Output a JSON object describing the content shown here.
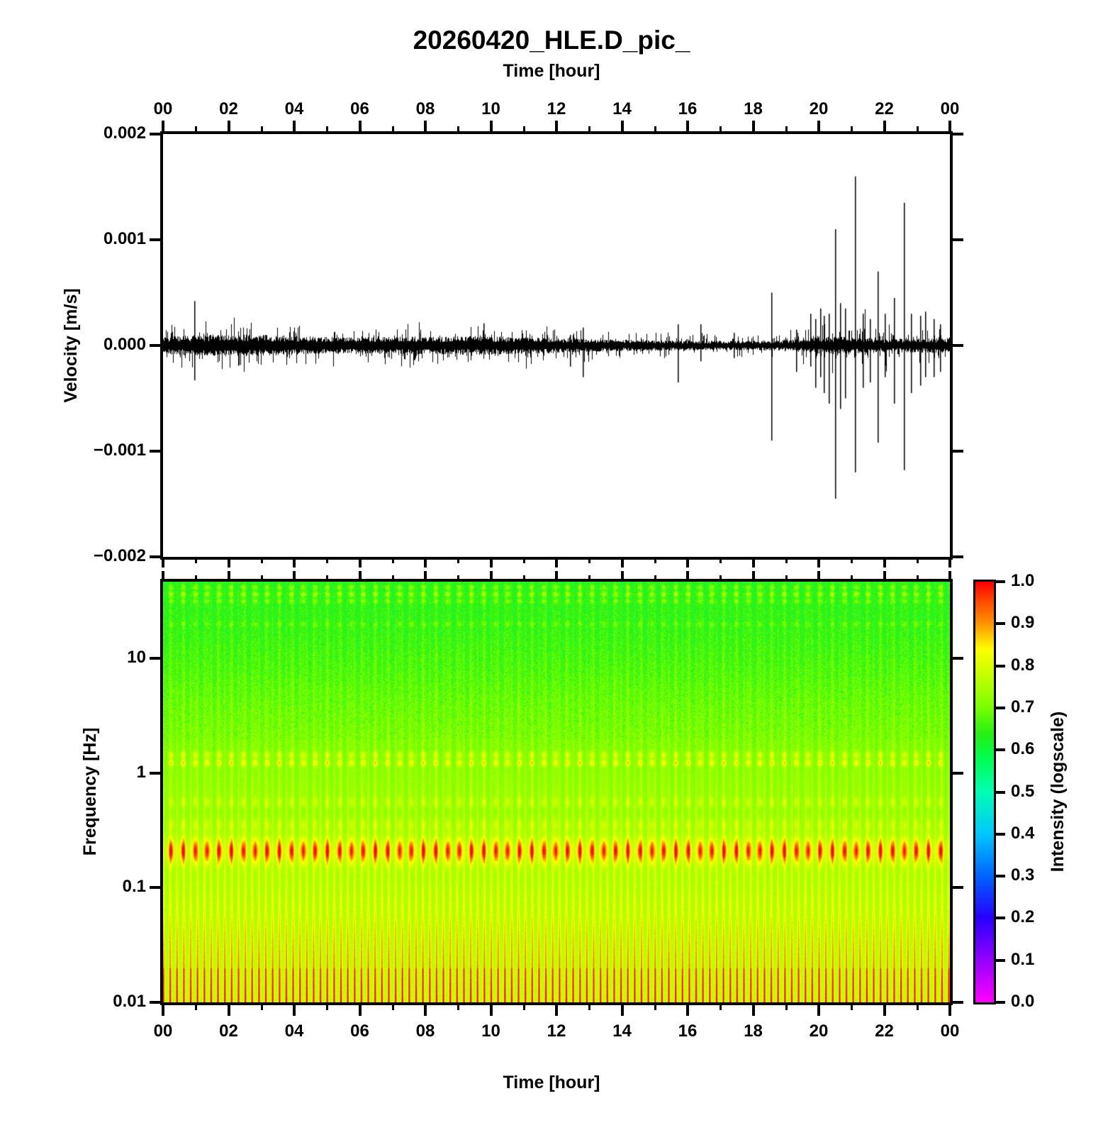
{
  "title": "20260420_HLE.D_pic_",
  "station": "HLE.D",
  "date": "20260420",
  "chart_data": [
    {
      "type": "line",
      "name": "seismogram",
      "title": "20260420_HLE.D_pic_",
      "xlabel": "Time [hour]",
      "ylabel": "Velocity [m/s]",
      "xlim": [
        0,
        24
      ],
      "ylim": [
        -0.002,
        0.002
      ],
      "x_major_tick_hours": [
        0,
        2,
        4,
        6,
        8,
        10,
        12,
        14,
        16,
        18,
        20,
        22,
        24
      ],
      "x_tick_labels": [
        "00",
        "02",
        "04",
        "06",
        "08",
        "10",
        "12",
        "14",
        "16",
        "18",
        "20",
        "22",
        "00"
      ],
      "x_minor_tick_step_hours": 1,
      "y_tick_values": [
        0.002,
        0.001,
        0.0,
        -0.001,
        -0.002
      ],
      "y_tick_labels": [
        "0.002",
        "0.001",
        "0.000",
        "−0.001",
        "−0.002"
      ],
      "line_color": "#000000",
      "background": "#ffffff",
      "noise_envelope_mps": [
        [
          0,
          6e-05
        ],
        [
          0.7,
          6.7e-05
        ],
        [
          1.5,
          7.4e-05
        ],
        [
          2.5,
          7.4e-05
        ],
        [
          3.5,
          7e-05
        ],
        [
          4.5,
          6e-05
        ],
        [
          5.5,
          5.4e-05
        ],
        [
          6.5,
          5.7e-05
        ],
        [
          7.5,
          6e-05
        ],
        [
          8.5,
          6e-05
        ],
        [
          9.5,
          6.4e-05
        ],
        [
          10.5,
          6e-05
        ],
        [
          11.5,
          5.7e-05
        ],
        [
          12.2,
          5e-05
        ],
        [
          13,
          4.4e-05
        ],
        [
          14,
          4e-05
        ],
        [
          15,
          3.7e-05
        ],
        [
          16,
          3.4e-05
        ],
        [
          17,
          3.2e-05
        ],
        [
          18,
          3.2e-05
        ],
        [
          19,
          3.7e-05
        ],
        [
          19.6,
          4.7e-05
        ],
        [
          20,
          5.7e-05
        ],
        [
          20.6,
          6e-05
        ],
        [
          21.2,
          5.4e-05
        ],
        [
          22,
          4.7e-05
        ],
        [
          22.8,
          4.7e-05
        ],
        [
          23.5,
          5e-05
        ],
        [
          24,
          5e-05
        ]
      ],
      "spikes_hour_up_down_mps": [
        [
          0.95,
          0.00042,
          -0.00033
        ],
        [
          7.8,
          0.00012,
          -8e-05
        ],
        [
          9.78,
          0.00021,
          -8e-05
        ],
        [
          12.4,
          0.0001,
          -0.0002
        ],
        [
          12.8,
          0.00017,
          -0.0003
        ],
        [
          15.7,
          0.0002,
          -0.00035
        ],
        [
          16.4,
          0.0002,
          -0.00015
        ],
        [
          17.4,
          0.00012,
          -0.00012
        ],
        [
          18.55,
          0.0005,
          -0.0009
        ],
        [
          19.3,
          0.00015,
          -0.00025
        ],
        [
          19.75,
          0.0003,
          -0.0002
        ],
        [
          19.9,
          0.00025,
          -0.0004
        ],
        [
          20.05,
          0.00035,
          -0.0003
        ],
        [
          20.15,
          0.00028,
          -0.00045
        ],
        [
          20.3,
          0.0003,
          -0.00055
        ],
        [
          20.5,
          0.0011,
          -0.00145
        ],
        [
          20.65,
          0.0004,
          -0.0006
        ],
        [
          20.8,
          0.00035,
          -0.0005
        ],
        [
          21.1,
          0.0016,
          -0.0012
        ],
        [
          21.35,
          0.0003,
          -0.0004
        ],
        [
          21.55,
          0.00025,
          -0.00035
        ],
        [
          21.8,
          0.0007,
          -0.00092
        ],
        [
          22.0,
          0.0003,
          -0.0003
        ],
        [
          22.3,
          0.00045,
          -0.00055
        ],
        [
          22.6,
          0.00135,
          -0.00118
        ],
        [
          22.8,
          0.0003,
          -0.00045
        ],
        [
          23.1,
          0.00028,
          -0.00038
        ],
        [
          23.25,
          0.00032,
          -0.0003
        ],
        [
          23.5,
          0.00025,
          -0.0003
        ],
        [
          23.7,
          0.0002,
          -0.00025
        ]
      ]
    },
    {
      "type": "heatmap",
      "name": "spectrogram",
      "xlabel": "Time [hour]",
      "ylabel": "Frequency [Hz]",
      "xlim": [
        0,
        24
      ],
      "ylim_hz": [
        0.01,
        46.4
      ],
      "y_log": true,
      "x_tick_labels": [
        "00",
        "02",
        "04",
        "06",
        "08",
        "10",
        "12",
        "14",
        "16",
        "18",
        "20",
        "22",
        "00"
      ],
      "y_tick_values_hz": [
        10,
        1,
        0.1,
        0.01
      ],
      "y_tick_labels": [
        "10",
        "1",
        "0.1",
        "0.01"
      ],
      "colorbar": {
        "label": "Intensity (logscale)",
        "tick_values": [
          1.0,
          0.9,
          0.8,
          0.7,
          0.6,
          0.5,
          0.4,
          0.3,
          0.2,
          0.1,
          0.0
        ],
        "tick_labels": [
          "1.0",
          "0.9",
          "0.8",
          "0.7",
          "0.6",
          "0.5",
          "0.4",
          "0.3",
          "0.2",
          "0.1",
          "0.0"
        ]
      },
      "colormap_stops": [
        [
          0.0,
          "#ff00ff"
        ],
        [
          0.1,
          "#9600ff"
        ],
        [
          0.2,
          "#2800ff"
        ],
        [
          0.3,
          "#0064ff"
        ],
        [
          0.4,
          "#00c8ff"
        ],
        [
          0.5,
          "#00ffb4"
        ],
        [
          0.58,
          "#00ff50"
        ],
        [
          0.64,
          "#28f014"
        ],
        [
          0.7,
          "#78ff00"
        ],
        [
          0.78,
          "#c8ff00"
        ],
        [
          0.84,
          "#ffff00"
        ],
        [
          0.9,
          "#ff9600"
        ],
        [
          0.95,
          "#ff5000"
        ],
        [
          1.0,
          "#ff0000"
        ]
      ],
      "base_intensity_vs_logf": [
        [
          -2.0,
          0.765
        ],
        [
          -1.5,
          0.76
        ],
        [
          -1.0,
          0.75
        ],
        [
          -0.6,
          0.74
        ],
        [
          -0.3,
          0.725
        ],
        [
          0.0,
          0.71
        ],
        [
          0.3,
          0.695
        ],
        [
          0.6,
          0.68
        ],
        [
          0.9,
          0.66
        ],
        [
          1.2,
          0.645
        ],
        [
          1.67,
          0.63
        ]
      ],
      "stripe_period_min": 12.5,
      "stripe_strength_vs_logf": [
        [
          -2.0,
          0.21
        ],
        [
          -1.6,
          0.16
        ],
        [
          -1.2,
          0.1
        ],
        [
          -0.9,
          0.06
        ],
        [
          -0.5,
          0.045
        ],
        [
          0.0,
          0.035
        ],
        [
          0.5,
          0.03
        ],
        [
          1.0,
          0.025
        ],
        [
          1.67,
          0.02
        ]
      ],
      "microseism_band": {
        "center_hz": 0.21,
        "sigma_logf": 0.1,
        "amp": 0.23,
        "period_min": 22
      },
      "dot_rows": [
        {
          "logf": 1.62,
          "amp": 0.09,
          "sigma": 0.02
        },
        {
          "logf": 1.56,
          "amp": 0.12,
          "sigma": 0.022
        },
        {
          "logf": 1.5,
          "amp": 0.08,
          "sigma": 0.02
        },
        {
          "logf": 1.3,
          "amp": 0.05,
          "sigma": 0.02
        },
        {
          "logf": 0.16,
          "amp": 0.1,
          "sigma": 0.028
        },
        {
          "logf": 0.09,
          "amp": 0.13,
          "sigma": 0.03
        },
        {
          "logf": -0.25,
          "amp": 0.05,
          "sigma": 0.04
        },
        {
          "logf": -0.45,
          "amp": 0.06,
          "sigma": 0.05
        }
      ]
    }
  ]
}
